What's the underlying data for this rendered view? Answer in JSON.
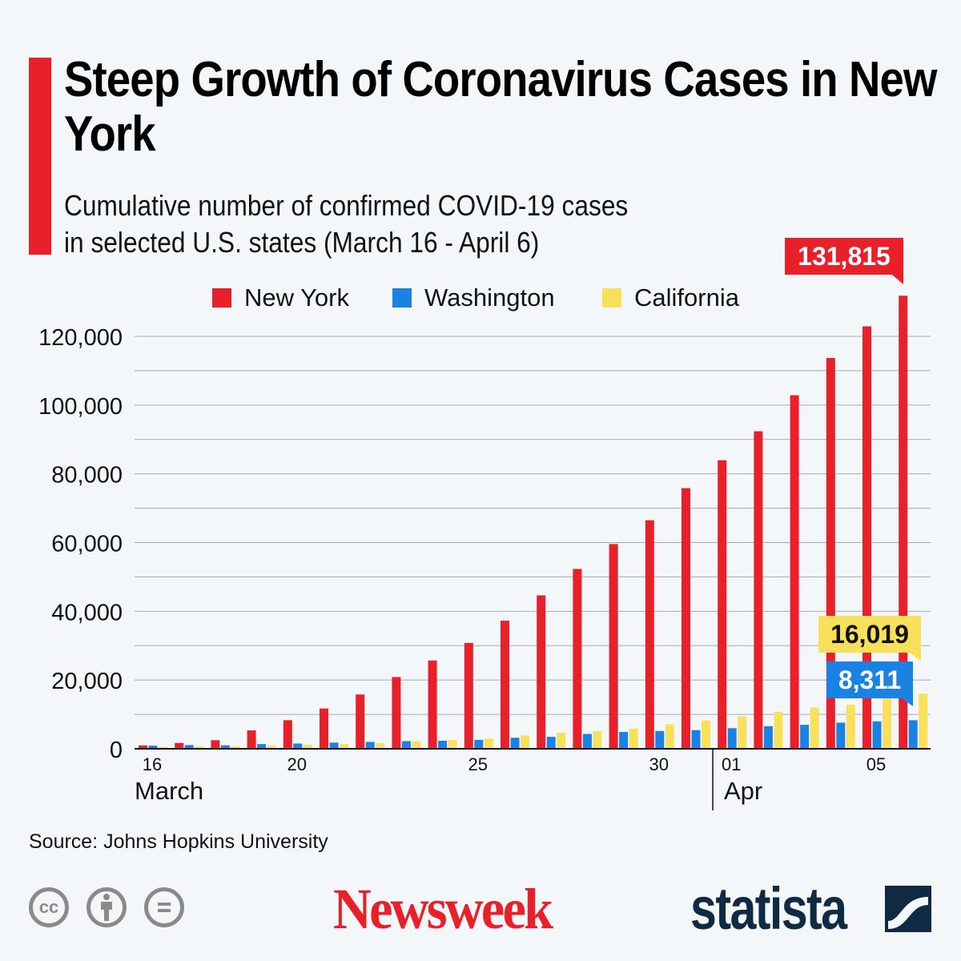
{
  "header": {
    "title": "Steep Growth of Coronavirus Cases in New York",
    "subtitle_line1": "Cumulative number of confirmed COVID-19 cases",
    "subtitle_line2": "in selected U.S. states (March 16 - April 6)"
  },
  "footer": {
    "source": "Source: Johns Hopkins University",
    "license_icons": [
      "cc-icon",
      "attribution-icon",
      "no-derivatives-icon"
    ],
    "newsweek_logo": "Newsweek",
    "statista_logo": "statista"
  },
  "chart_data": {
    "type": "bar",
    "title": "Steep Growth of Coronavirus Cases in New York",
    "legend_position": "top",
    "grid": true,
    "ylim": [
      0,
      132000
    ],
    "yticks": [
      0,
      20000,
      40000,
      60000,
      80000,
      100000,
      120000
    ],
    "ytick_labels": [
      "0",
      "20,000",
      "40,000",
      "60,000",
      "80,000",
      "100,000",
      "120,000"
    ],
    "categories": [
      "Mar 16",
      "Mar 17",
      "Mar 18",
      "Mar 19",
      "Mar 20",
      "Mar 21",
      "Mar 22",
      "Mar 23",
      "Mar 24",
      "Mar 25",
      "Mar 26",
      "Mar 27",
      "Mar 28",
      "Mar 29",
      "Mar 30",
      "Mar 31",
      "Apr 01",
      "Apr 02",
      "Apr 03",
      "Apr 04",
      "Apr 05",
      "Apr 06"
    ],
    "xtick_labels": [
      {
        "index": 0,
        "label": "16"
      },
      {
        "index": 4,
        "label": "20"
      },
      {
        "index": 9,
        "label": "25"
      },
      {
        "index": 14,
        "label": "30"
      },
      {
        "index": 16,
        "label": "01"
      },
      {
        "index": 20,
        "label": "05"
      }
    ],
    "month_labels": [
      {
        "index": 0,
        "label": "March"
      },
      {
        "index": 16,
        "label": "Apr"
      }
    ],
    "series": [
      {
        "name": "New York",
        "color": "#e8202a",
        "values": [
          967,
          1706,
          2495,
          5365,
          8310,
          11710,
          15793,
          20875,
          25665,
          30811,
          37258,
          44635,
          52318,
          59568,
          66497,
          75833,
          83948,
          92381,
          102863,
          113704,
          122911,
          131815
        ],
        "callout": "131,815"
      },
      {
        "name": "Washington",
        "color": "#1a82e2",
        "values": [
          904,
          1076,
          1014,
          1376,
          1524,
          1793,
          1996,
          2221,
          2328,
          2591,
          3207,
          3477,
          4310,
          4896,
          5179,
          5432,
          5984,
          6585,
          6966,
          7591,
          7984,
          8311
        ],
        "callout": "8,311"
      },
      {
        "name": "California",
        "color": "#f8e05a",
        "values": [
          557,
          698,
          751,
          952,
          1177,
          1364,
          1642,
          2108,
          2538,
          2998,
          3899,
          4657,
          5095,
          5852,
          7138,
          8210,
          9399,
          10773,
          12004,
          12837,
          15034,
          16019
        ],
        "callout": "16,019"
      }
    ]
  }
}
